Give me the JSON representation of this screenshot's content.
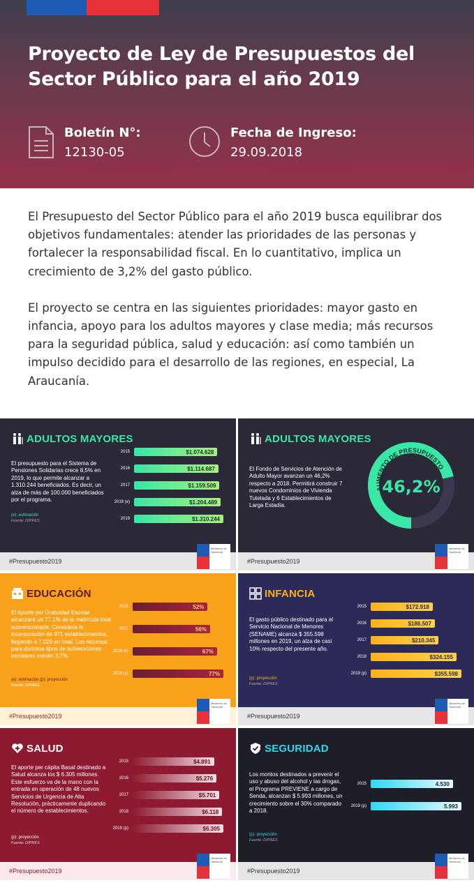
{
  "header": {
    "title": "Proyecto de Ley de Presupuestos del Sector Público para el año 2019",
    "boletin_label": "Boletín N°:",
    "boletin_value": "12130-05",
    "fecha_label": "Fecha de Ingreso:",
    "fecha_value": "29.09.2018"
  },
  "intro": {
    "p1": "El Presupuesto del Sector Público para el año 2019 busca equilibrar dos objetivos fundamentales: atender las prioridades de las personas y fortalecer la responsabilidad fiscal. En lo cuantitativo, implica un crecimiento de 3,2% del gasto público.",
    "p2": "El proyecto se centra en las siguientes prioridades: mayor gasto en infancia, apoyo para los adultos mayores y clase media; más recursos para la seguridad pública, salud y educación: así como también un impulso decidido para el desarrollo de las regiones, en especial, La Araucanía."
  },
  "hashtag": "#Presupuesto2019",
  "logo_text": "Ministerio de Hacienda",
  "cards": {
    "adultos1": {
      "title": "ADULTOS MAYORES",
      "desc": "El presupuesto para el Sistema de Pensiones Solidarias crece 8,5% en 2019, lo que permite alcanzar a 1.310.244 beneficiados. Es decir, un alza de más de 100.000 beneficiados por el programa.",
      "note": "(e): estimación",
      "source": "Fuente: DIPRES",
      "rows": [
        {
          "year": "2015",
          "label": "$1.074.628",
          "value": 1074628
        },
        {
          "year": "2016",
          "label": "$1.114.687",
          "value": 1114687
        },
        {
          "year": "2017",
          "label": "$1.159.509",
          "value": 1159509
        },
        {
          "year": "2018 (e)",
          "label": "$1.204.489",
          "value": 1204489
        },
        {
          "year": "2019",
          "label": "$1.310.244",
          "value": 1310244
        }
      ]
    },
    "adultos2": {
      "title": "ADULTOS MAYORES",
      "desc": "El Fondo de Servicios de Atención de Adulto Mayor avanzan un 46,2% respecto a 2018. Permitirá construir 7 nuevos Condominios de Vivienda Tutelada  y 6 Establecimientos de Larga Estadía.",
      "ring_label": "AUMENTO DE PRESUPUESTO",
      "percent": "46,2%",
      "percent_value": 46.2
    },
    "educacion": {
      "title": "EDUCACIÓN",
      "desc": "El Aporte por Gratuidad Escolar alcanzará un 77.1% de la matrícula total subvencionada. Considera la incorporación de 971 establecimientos, llegando a 7.029 en total. Los recursos para distintos tipos de subvenciones escolares crecen 3,7%.",
      "note": "(e): estimación        (p): proyección",
      "source": "Fuente: DIPRES",
      "rows": [
        {
          "year": "2016",
          "label": "52%",
          "value": 52
        },
        {
          "year": "2017",
          "label": "56%",
          "value": 56
        },
        {
          "year": "2018 (e)",
          "label": "67%",
          "value": 67
        },
        {
          "year": "2019 (p)",
          "label": "77%",
          "value": 77
        }
      ]
    },
    "infancia": {
      "title": "INFANCIA",
      "desc": "El gasto público destinado para el Servicio Nacional de Menores (SENAME) alcanza $ 355.598 millones en 2019, un alza de casi 10% respecto del presente año.",
      "note": "(p): proyección",
      "source": "Fuente: DIPRES",
      "rows": [
        {
          "year": "2015",
          "label": "$172.918",
          "value": 172918
        },
        {
          "year": "2016",
          "label": "$186.507",
          "value": 186507
        },
        {
          "year": "2017",
          "label": "$210.345",
          "value": 210345
        },
        {
          "year": "2018",
          "label": "$324.155",
          "value": 324155
        },
        {
          "year": "2019 (p)",
          "label": "$355.598",
          "value": 355598
        }
      ]
    },
    "salud": {
      "title": "SALUD",
      "desc": "El aporte per cápita Basal destinado a Salud alcanza los $ 6.305 millones.  Este esfuerzo va de la mano con la entrada en operación de 48 nuevos Servicios de Urgencia de Alta Resolución, prácticamente duplicando el número de establecimientos.",
      "note": "(p): proyección",
      "source": "Fuente: DIPRES",
      "rows": [
        {
          "year": "2015",
          "label": "$4.891",
          "value": 4891
        },
        {
          "year": "2016",
          "label": "$5.276",
          "value": 5276
        },
        {
          "year": "2017",
          "label": "$5.701",
          "value": 5701
        },
        {
          "year": "2018",
          "label": "$6.118",
          "value": 6118
        },
        {
          "year": "2019 (p)",
          "label": "$6.305",
          "value": 6305
        }
      ]
    },
    "seguridad": {
      "title": "SEGURIDAD",
      "desc": "Los montos destinados a prevenir el uso y abuso del alcohol y las drogas, el Programa PREVIENE a cargo de Senda,  alcanzan $ 5.993 millones, un crecimiento sobre el 30%  comparado a 2018.",
      "note": "(p): proyección",
      "source": "Fuente: DIPRES",
      "rows": [
        {
          "year": "2015",
          "label": "4.530",
          "value": 4530
        },
        {
          "year": "2019 (p)",
          "label": "5.993",
          "value": 5993
        }
      ]
    }
  }
}
